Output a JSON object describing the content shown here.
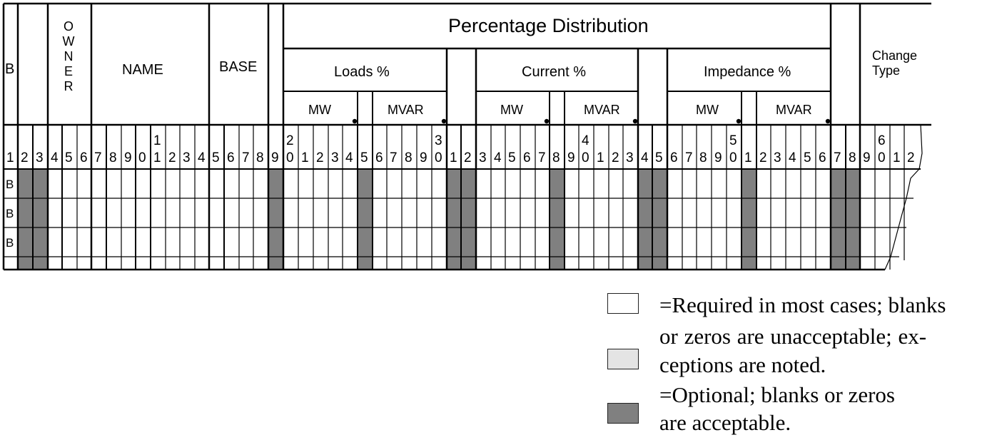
{
  "header": {
    "b_label": "B",
    "owner_label": [
      "O",
      "W",
      "N",
      "E",
      "R"
    ],
    "name_label": "NAME",
    "base_label": "BASE",
    "percentage_distribution": "Percentage Distribution",
    "loads_label": "Loads %",
    "current_label": "Current %",
    "impedance_label": "Impedance %",
    "mw_label": "MW",
    "mvar_label": "MVAR",
    "change_type_label": [
      "Change",
      "Type"
    ]
  },
  "column_numbers": {
    "tens": [
      {
        "col": 11,
        "digit": "1"
      },
      {
        "col": 20,
        "digit": "2"
      },
      {
        "col": 30,
        "digit": "3"
      },
      {
        "col": 40,
        "digit": "4"
      },
      {
        "col": 50,
        "digit": "5"
      },
      {
        "col": 60,
        "digit": "6"
      }
    ],
    "ones": [
      "1",
      "2",
      "3",
      "4",
      "5",
      "6",
      "7",
      "8",
      "9",
      "0",
      "1",
      "2",
      "3",
      "4",
      "5",
      "6",
      "7",
      "8",
      "9",
      "0",
      "1",
      "2",
      "3",
      "4",
      "5",
      "6",
      "7",
      "8",
      "9",
      "0",
      "1",
      "2",
      "3",
      "4",
      "5",
      "6",
      "7",
      "8",
      "9",
      "0",
      "1",
      "2",
      "3",
      "4",
      "5",
      "6",
      "7",
      "8",
      "9",
      "0",
      "1",
      "2",
      "3",
      "4",
      "5",
      "6",
      "7",
      "8",
      "9",
      "0",
      "1",
      "2"
    ]
  },
  "rows": [
    {
      "record_type": "B"
    },
    {
      "record_type": "B"
    },
    {
      "record_type": "B"
    }
  ],
  "legend": {
    "required_line1": "=Required in most cases; blanks",
    "required_line2": "or  zeros  are  unacceptable;  ex-",
    "required_line3": "ceptions are noted.",
    "optional_line1": "=Optional; blanks or zeros",
    "optional_line2": "are acceptable.",
    "colors": {
      "required": "#ffffff",
      "exceptions": "#e4e4e4",
      "optional": "#808080"
    }
  }
}
